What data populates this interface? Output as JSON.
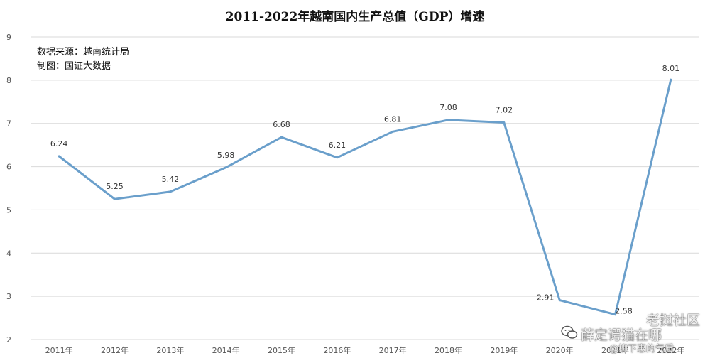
{
  "chart_data": {
    "type": "line",
    "title": "2011-2022年越南国内生产总值（GDP）增速",
    "categories": [
      "2011年",
      "2012年",
      "2013年",
      "2014年",
      "2015年",
      "2016年",
      "2017年",
      "2018年",
      "2019年",
      "2020年",
      "2021年",
      "2022年"
    ],
    "series": [
      {
        "values": [
          6.24,
          5.25,
          5.42,
          5.98,
          6.68,
          6.21,
          6.81,
          7.08,
          7.02,
          2.91,
          2.58,
          8.01
        ],
        "color": "#6a9fcb"
      }
    ],
    "data_labels": [
      "6.24",
      "5.25",
      "5.42",
      "5.98",
      "6.68",
      "6.21",
      "6.81",
      "7.08",
      "7.02",
      "2.91",
      "2.58",
      "8.01"
    ],
    "ylim": [
      2,
      9
    ],
    "yticks": [
      "2",
      "3",
      "4",
      "5",
      "6",
      "7",
      "8",
      "9"
    ],
    "grid": true,
    "legend": "none"
  },
  "notes": {
    "source": "数据来源：越南统计局",
    "maker": "制图：国证大数据"
  },
  "watermark": {
    "site": "老挝社区",
    "account": "薛定谔猫在哪",
    "sub": "@柳下惠的气质",
    "icon": "wechat-icon"
  }
}
